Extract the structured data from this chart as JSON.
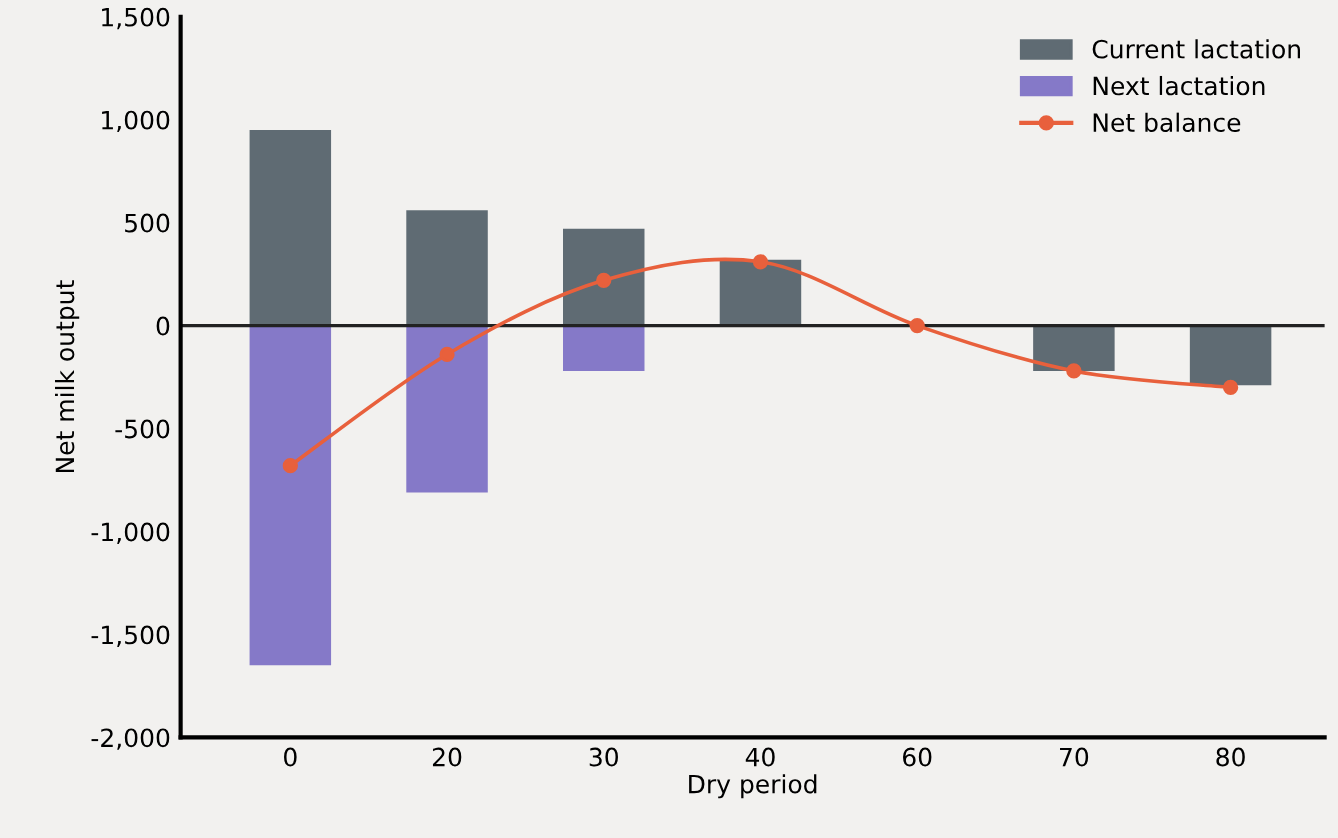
{
  "chart_data": {
    "type": "bar",
    "xlabel": "Dry period",
    "ylabel": "Net milk output",
    "categories": [
      "0",
      "20",
      "30",
      "40",
      "60",
      "70",
      "80"
    ],
    "series": [
      {
        "name": "Current lactation",
        "color": "#5f6b73",
        "values": [
          950,
          560,
          470,
          320,
          null,
          -220,
          -290
        ]
      },
      {
        "name": "Next lactation",
        "color": "#8579c8",
        "values": [
          -1650,
          -810,
          -220,
          null,
          null,
          null,
          null
        ]
      },
      {
        "name": "Net balance",
        "type": "line",
        "color": "#e8603c",
        "marker": "circle",
        "values": [
          -680,
          -140,
          220,
          310,
          0,
          -220,
          -300
        ]
      }
    ],
    "ylim": [
      -2000,
      1500
    ],
    "yticks": [
      {
        "value": -2000,
        "label": "-2,000"
      },
      {
        "value": -1500,
        "label": "-1,500"
      },
      {
        "value": -1000,
        "label": "-1,000"
      },
      {
        "value": -500,
        "label": "-500"
      },
      0,
      500,
      {
        "value": 1000,
        "label": "1,000"
      },
      {
        "value": 1500,
        "label": "1,500"
      }
    ],
    "ref_lines": [
      {
        "axis": "y",
        "value": 0,
        "color": "#222222"
      }
    ],
    "legend": "top right",
    "grid": false
  }
}
